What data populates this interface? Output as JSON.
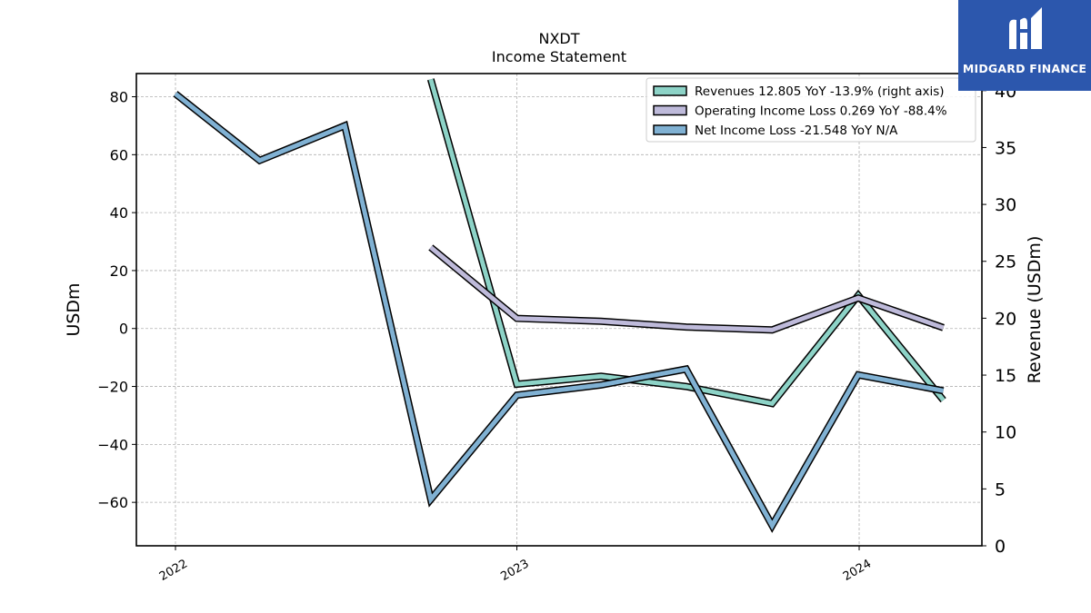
{
  "chart_data": {
    "type": "line",
    "title": "NXDT",
    "subtitle": "Income Statement",
    "ylabel": "USDm",
    "ylabel_right": "Revenue (USDm)",
    "ylim": [
      -75,
      88
    ],
    "ylim_right": [
      0,
      41.5
    ],
    "yticks": [
      80,
      60,
      40,
      20,
      0,
      -20,
      -40,
      -60
    ],
    "yticks_right": [
      40,
      35,
      30,
      25,
      20,
      15,
      10,
      5,
      0
    ],
    "xticks": [
      "2022",
      "2023",
      "2024"
    ],
    "grid": true,
    "legend_position": "top-right",
    "series": [
      {
        "name": "Revenues  12.805 YoY -13.9% (right axis)",
        "axis": "right",
        "color": "#8dd3c7",
        "x": [
          "2022-09-30",
          "2022-12-31",
          "2023-03-31",
          "2023-06-30",
          "2023-09-30",
          "2023-12-31",
          "2024-03-31"
        ],
        "values": [
          41.0,
          14.2,
          14.9,
          14.0,
          12.5,
          22.0,
          12.8
        ]
      },
      {
        "name": "Operating Income Loss  0.269 YoY -88.4%",
        "axis": "left",
        "color": "#bebada",
        "x": [
          "2022-09-30",
          "2022-12-31",
          "2023-03-31",
          "2023-06-30",
          "2023-09-30",
          "2023-12-31",
          "2024-03-31"
        ],
        "values": [
          28.0,
          3.5,
          2.5,
          0.5,
          -0.5,
          10.5,
          0.3
        ]
      },
      {
        "name": "Net Income Loss  -21.548 YoY N/A",
        "axis": "left",
        "color": "#80b1d3",
        "x": [
          "2021-12-31",
          "2022-03-31",
          "2022-06-30",
          "2022-09-30",
          "2022-12-31",
          "2023-03-31",
          "2023-06-30",
          "2023-09-30",
          "2023-12-31",
          "2024-03-31"
        ],
        "values": [
          81.0,
          58.0,
          70.0,
          -59.0,
          -23.0,
          -19.5,
          -14.0,
          -68.0,
          -16.0,
          -21.5
        ]
      }
    ]
  },
  "logo": {
    "text": "MIDGARD FINANCE"
  }
}
